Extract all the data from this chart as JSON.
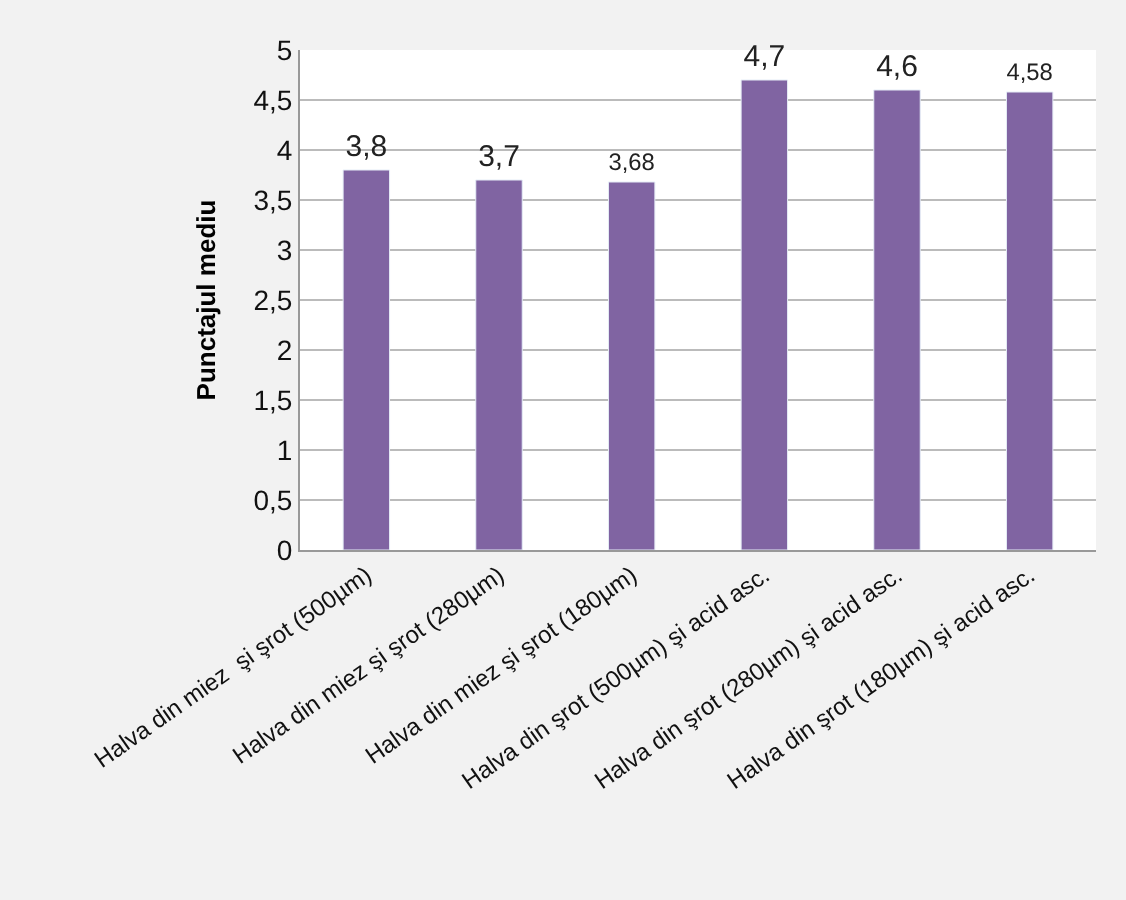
{
  "chart_data": {
    "type": "bar",
    "ylabel": "Punctajul mediu",
    "categories": [
      "Halva din miez  şi şrot (500µm)",
      "Halva din miez şi şrot (280µm)",
      "Halva din miez şi şrot (180µm)",
      "Halva din şrot (500µm) şi acid asc.",
      "Halva din şrot (280µm) şi acid asc.",
      "Halva din şrot (180µm) şi acid asc."
    ],
    "values": [
      3.8,
      3.7,
      3.68,
      4.7,
      4.6,
      4.58
    ],
    "value_labels": [
      "3,8",
      "3,7",
      "3,68",
      "4,7",
      "4,6",
      "4,58"
    ],
    "color": "#8064a2",
    "ylim": [
      0,
      5
    ],
    "yticks": [
      0,
      {
        "value": 0.5,
        "label": "0,5"
      },
      1,
      {
        "value": 1.5,
        "label": "1,5"
      },
      2,
      {
        "value": 2.5,
        "label": "2,5"
      },
      3,
      {
        "value": 3.5,
        "label": "3,5"
      },
      4,
      {
        "value": 4.5,
        "label": "4,5"
      },
      5
    ],
    "grid": "y",
    "legend": false
  }
}
